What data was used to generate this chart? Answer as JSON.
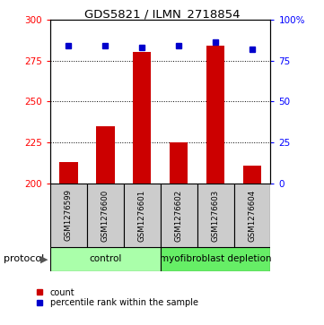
{
  "title": "GDS5821 / ILMN_2718854",
  "samples": [
    "GSM1276599",
    "GSM1276600",
    "GSM1276601",
    "GSM1276602",
    "GSM1276603",
    "GSM1276604"
  ],
  "counts": [
    213,
    235,
    280,
    225,
    284,
    211
  ],
  "percentile_ranks": [
    84,
    84,
    83,
    84,
    86,
    82
  ],
  "ylim_left": [
    200,
    300
  ],
  "yticks_left": [
    200,
    225,
    250,
    275,
    300
  ],
  "ylim_right": [
    0,
    100
  ],
  "yticks_right": [
    0,
    25,
    50,
    75,
    100
  ],
  "ytick_labels_right": [
    "0",
    "25",
    "50",
    "75",
    "100%"
  ],
  "bar_color": "#cc0000",
  "dot_color": "#0000cc",
  "groups": [
    {
      "label": "control",
      "color": "#aaffaa"
    },
    {
      "label": "myofibroblast depletion",
      "color": "#66ee66"
    }
  ],
  "protocol_label": "protocol",
  "legend_count_label": "count",
  "legend_pct_label": "percentile rank within the sample",
  "bg_color": "#ffffff",
  "sample_box_color": "#cccccc"
}
